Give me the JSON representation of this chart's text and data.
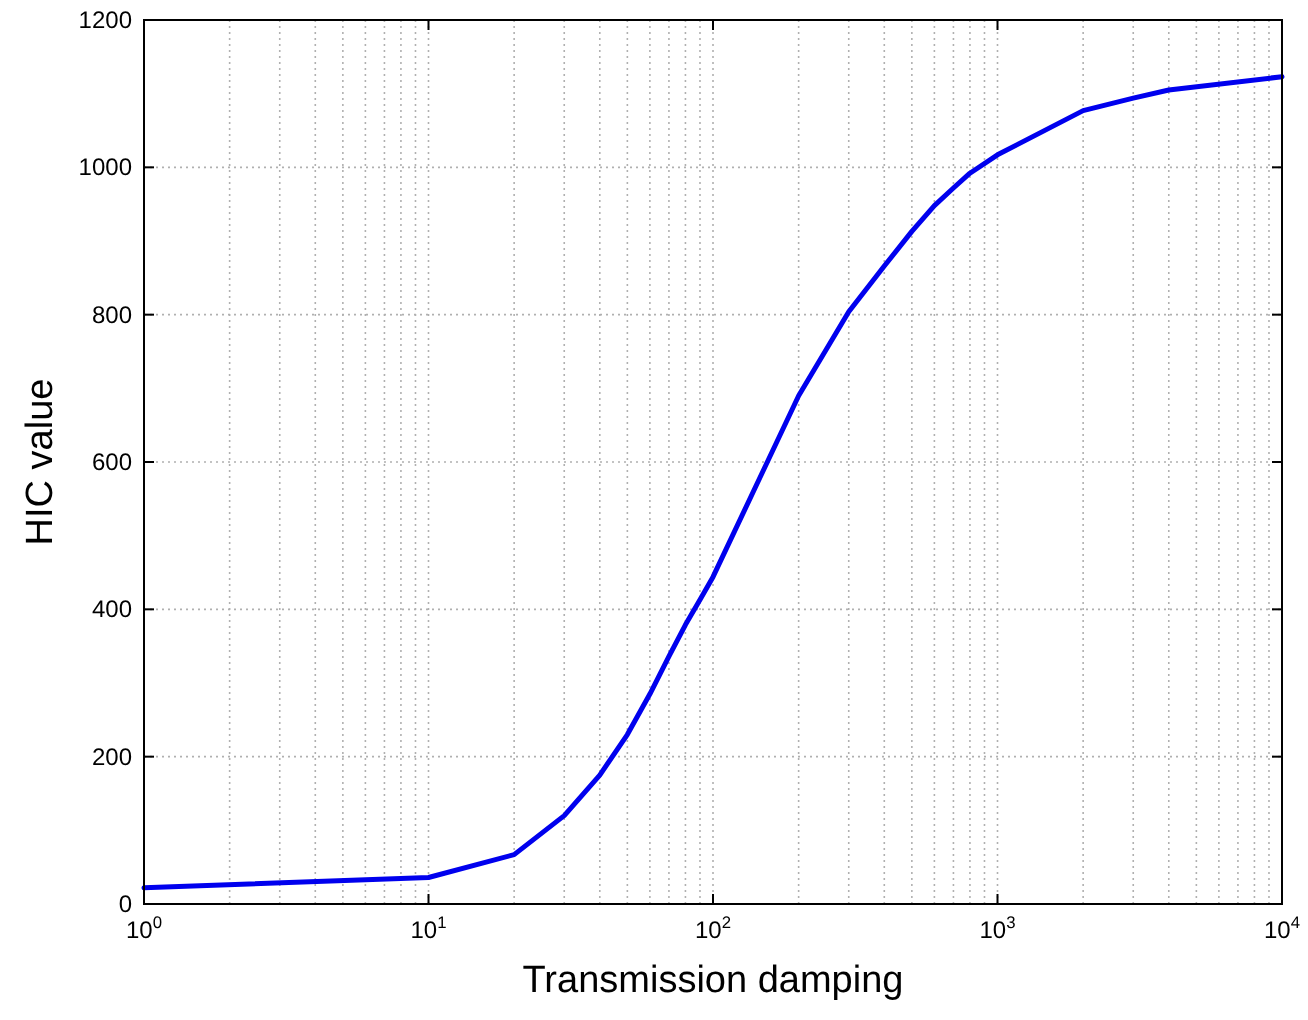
{
  "chart_data": {
    "type": "line",
    "xlabel": "Transmission damping",
    "ylabel": "HIC value",
    "log": "x",
    "x": [
      1,
      10,
      20,
      30,
      40,
      50,
      60,
      70,
      80,
      90,
      100,
      200,
      300,
      400,
      500,
      600,
      700,
      800,
      1000,
      2000,
      3000,
      4000,
      10000
    ],
    "series": [
      {
        "color": "#0000ee",
        "values": [
          22,
          36,
          67,
          120,
          175,
          230,
          285,
          336,
          379,
          413,
          444,
          690,
          804,
          866,
          913,
          948,
          972,
          992,
          1017,
          1077,
          1094,
          1105,
          1123
        ]
      }
    ],
    "xlim": [
      1,
      10000
    ],
    "ylim": [
      0,
      1200
    ],
    "xticks": [
      {
        "value": 1,
        "label": "10$^{0}$"
      },
      {
        "value": 10,
        "label": "10$^{1}$"
      },
      {
        "value": 100,
        "label": "10$^{2}$"
      },
      {
        "value": 1000,
        "label": "10$^{3}$"
      },
      {
        "value": 10000,
        "label": "10$^{4}$"
      }
    ],
    "yticks": [
      0,
      200,
      400,
      600,
      800,
      1000,
      1200
    ],
    "grid": true,
    "line_style": "solid",
    "marker": "none"
  }
}
